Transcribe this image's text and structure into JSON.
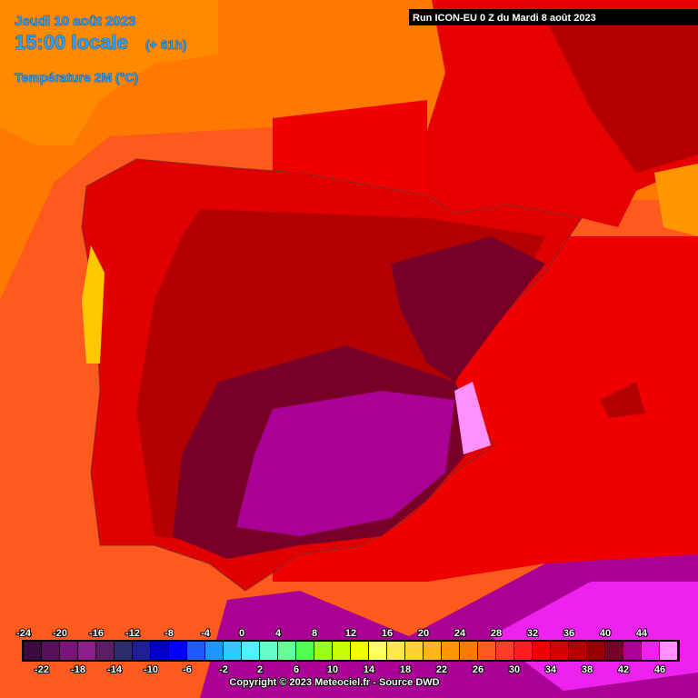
{
  "header": {
    "date": "Jeudi 10 août 2023",
    "time": "15:00 locale",
    "offset": "(+ 61h)",
    "variable": "Température 2M (°C)",
    "run": "Run ICON-EU 0 Z du Mardi 8 août 2023"
  },
  "legend": {
    "labels": [
      -24,
      -22,
      -20,
      -18,
      -16,
      -14,
      -12,
      -10,
      -8,
      -6,
      -4,
      -2,
      0,
      2,
      4,
      6,
      8,
      10,
      12,
      14,
      16,
      18,
      20,
      22,
      24,
      26,
      28,
      30,
      32,
      34,
      36,
      38,
      40,
      42,
      44,
      46
    ],
    "colors": [
      "#3c0a3c",
      "#5a0f5a",
      "#78147a",
      "#8c1e8c",
      "#5a1e64",
      "#2d2d6e",
      "#1e1e96",
      "#0000c8",
      "#0000ff",
      "#1e5aff",
      "#1e96ff",
      "#32c8ff",
      "#50f0ff",
      "#64ffc8",
      "#64ff96",
      "#50ff50",
      "#96ff1e",
      "#c8ff00",
      "#f0ff00",
      "#ffff64",
      "#ffe650",
      "#ffd232",
      "#ffb41e",
      "#ff9600",
      "#ff7800",
      "#ff5a1e",
      "#ff3c28",
      "#ff1e1e",
      "#f00000",
      "#d20000",
      "#b40000",
      "#960000",
      "#780028",
      "#aa0096",
      "#ee22ee",
      "#ff90ff"
    ]
  },
  "footer": "Copyright © 2023 Meteociel.fr - Source DWD"
}
